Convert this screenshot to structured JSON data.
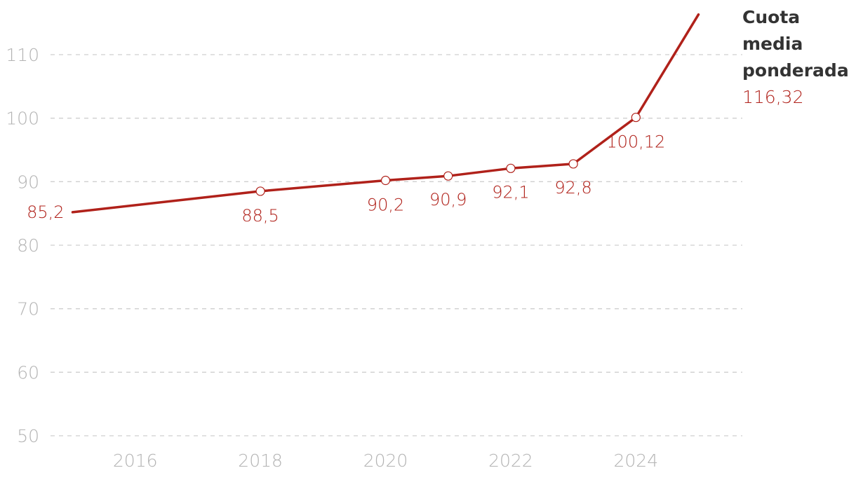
{
  "chart_data": {
    "type": "line",
    "title": "",
    "xlabel": "",
    "ylabel": "",
    "xlim": [
      2014.4,
      2025.5
    ],
    "ylim": [
      50,
      116.32
    ],
    "y_ticks": [
      50,
      60,
      70,
      80,
      90,
      100,
      110
    ],
    "y_tick_labels": [
      "50",
      "60",
      "70",
      "80",
      "90",
      "100",
      "110"
    ],
    "x_ticks": [
      2016,
      2018,
      2020,
      2022,
      2024
    ],
    "x_tick_labels": [
      "2016",
      "2018",
      "2020",
      "2022",
      "2024"
    ],
    "grid": true,
    "color": "#b0211a",
    "series": [
      {
        "name_lines": [
          "Cuota",
          "media",
          "ponderada"
        ],
        "last_value_label": "116,32",
        "x": [
          2015,
          2018,
          2020,
          2021,
          2022,
          2023,
          2024,
          2025
        ],
        "values": [
          85.2,
          88.5,
          90.2,
          90.9,
          92.1,
          92.8,
          100.12,
          116.32
        ],
        "markers": [
          false,
          true,
          true,
          true,
          true,
          true,
          true,
          false
        ],
        "point_labels": [
          "85,2",
          "88,5",
          "90,2",
          "90,9",
          "92,1",
          "92,8",
          "100,12",
          null
        ],
        "label_position": [
          "left",
          "below",
          "below",
          "above",
          "above",
          "above",
          "below",
          "none"
        ]
      }
    ]
  }
}
